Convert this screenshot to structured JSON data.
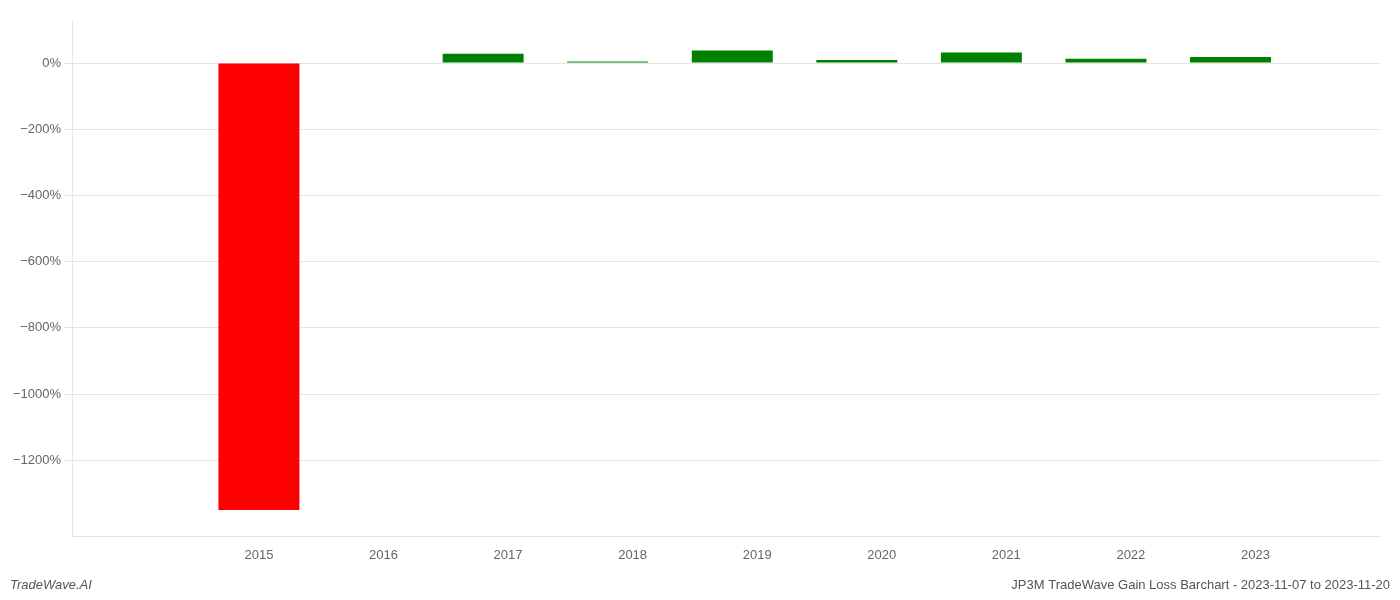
{
  "chart_data": {
    "type": "bar",
    "x": [
      2015.0,
      2016.8,
      2017.8,
      2018.8,
      2019.8,
      2020.8,
      2021.8,
      2022.8
    ],
    "values": [
      -1350,
      28,
      5,
      38,
      9,
      32,
      13,
      18
    ],
    "colors": [
      "#ff0000",
      "#008000",
      "#008000",
      "#008000",
      "#008000",
      "#008000",
      "#008000",
      "#008000"
    ],
    "xlim": [
      2013.5,
      2024.0
    ],
    "ylim": [
      -1430,
      130
    ],
    "xticks": [
      2015,
      2016,
      2017,
      2018,
      2019,
      2020,
      2021,
      2022,
      2023
    ],
    "yticks": [
      {
        "value": 0,
        "label": "0%"
      },
      {
        "value": -200,
        "label": "−200%"
      },
      {
        "value": -400,
        "label": "−400%"
      },
      {
        "value": -600,
        "label": "−600%"
      },
      {
        "value": -800,
        "label": "−800%"
      },
      {
        "value": -1000,
        "label": "−1000%"
      },
      {
        "value": -1200,
        "label": "−1200%"
      }
    ],
    "grid": true,
    "annotations": [
      "TradeWave.AI",
      "JP3M TradeWave Gain Loss Barchart - 2023-11-07 to 2023-11-20"
    ]
  }
}
